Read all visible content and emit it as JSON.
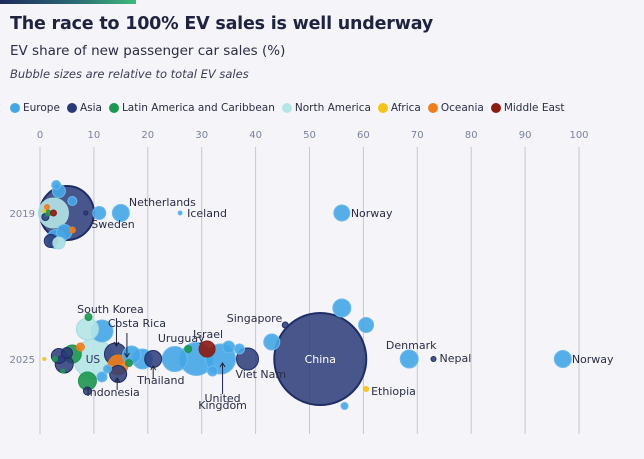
{
  "header": {
    "title": "The race to 100% EV sales is well underway",
    "subtitle": "EV share of new passenger car sales (%)",
    "note": "Bubble sizes are relative to total EV sales"
  },
  "colors": {
    "Europe": "#45a6e6",
    "Asia": "#2a3a78",
    "Latin America and Caribbean": "#1d9650",
    "North America": "#b5e6e6",
    "Africa": "#f7c21a",
    "Oceania": "#ef7d1a",
    "Middle East": "#8b1a10",
    "background": "#f4f4f9",
    "grid": "#c4c7d4"
  },
  "legend": [
    {
      "label": "Europe",
      "color": "#45a6e6"
    },
    {
      "label": "Asia",
      "color": "#2a3a78"
    },
    {
      "label": "Latin America and Caribbean",
      "color": "#1d9650"
    },
    {
      "label": "North America",
      "color": "#b5e6e6"
    },
    {
      "label": "Africa",
      "color": "#f7c21a"
    },
    {
      "label": "Oceania",
      "color": "#ef7d1a"
    },
    {
      "label": "Middle East",
      "color": "#8b1a10"
    }
  ],
  "chart_data": {
    "type": "scatter",
    "title": "The race to 100% EV sales is well underway",
    "subtitle": "EV share of new passenger car sales (%)",
    "note": "Bubble sizes are relative to total EV sales",
    "xlabel": "EV share of new passenger car sales (%)",
    "ylabel": "",
    "xlim": [
      0,
      100
    ],
    "xticks": [
      0,
      10,
      20,
      30,
      40,
      50,
      60,
      70,
      80,
      90,
      100
    ],
    "rows": [
      "2019",
      "2025"
    ],
    "grid": true,
    "legend_position": "top-left",
    "points": [
      {
        "year": "2019",
        "country": "Norway",
        "x": 56,
        "region": "Europe",
        "size": 1.6,
        "label": "Norway"
      },
      {
        "year": "2019",
        "country": "Iceland",
        "x": 26,
        "region": "Europe",
        "size": 0.4,
        "label": "Iceland"
      },
      {
        "year": "2019",
        "country": "Netherlands",
        "x": 15,
        "region": "Europe",
        "size": 1.7,
        "label": "Netherlands"
      },
      {
        "year": "2019",
        "country": "Sweden",
        "x": 11,
        "region": "Europe",
        "size": 1.3,
        "label": "Sweden"
      },
      {
        "year": "2019",
        "country": "China",
        "x": 5,
        "region": "Asia",
        "size": 5.4,
        "label": ""
      },
      {
        "year": "2019",
        "country": "US",
        "x": 2.5,
        "region": "North America",
        "size": 3.0,
        "label": ""
      },
      {
        "year": "2019",
        "country": "",
        "x": 8.5,
        "region": "Asia",
        "size": 0.4,
        "label": ""
      },
      {
        "year": "2019",
        "country": "",
        "x": 3,
        "region": "Europe",
        "size": 1.9,
        "dy": 26,
        "label": ""
      },
      {
        "year": "2019",
        "country": "",
        "x": 4.5,
        "region": "Europe",
        "size": 1.5,
        "dy": 19,
        "label": ""
      },
      {
        "year": "2019",
        "country": "",
        "x": 3.5,
        "region": "Europe",
        "size": 1.3,
        "dy": -22,
        "label": ""
      },
      {
        "year": "2019",
        "country": "",
        "x": 3,
        "region": "Europe",
        "size": 0.9,
        "dy": -28,
        "label": ""
      },
      {
        "year": "2019",
        "country": "",
        "x": 6,
        "region": "Europe",
        "size": 0.9,
        "dy": -12,
        "label": ""
      },
      {
        "year": "2019",
        "country": "",
        "x": 2,
        "region": "Asia",
        "size": 1.3,
        "dy": 28,
        "label": ""
      },
      {
        "year": "2019",
        "country": "",
        "x": 3.5,
        "region": "North America",
        "size": 1.2,
        "dy": 30,
        "label": ""
      },
      {
        "year": "2019",
        "country": "",
        "x": 6,
        "region": "Oceania",
        "size": 0.6,
        "dy": 17,
        "label": ""
      },
      {
        "year": "2019",
        "country": "",
        "x": 1.5,
        "region": "Latin America and Caribbean",
        "size": 0.6,
        "dy": 0,
        "label": ""
      },
      {
        "year": "2019",
        "country": "",
        "x": 2.5,
        "region": "Middle East",
        "size": 0.6,
        "dy": 0,
        "label": ""
      },
      {
        "year": "2019",
        "country": "",
        "x": 0.8,
        "region": "Africa",
        "size": 0.3,
        "dy": -2,
        "label": ""
      },
      {
        "year": "2019",
        "country": "",
        "x": 1.3,
        "region": "Oceania",
        "size": 0.5,
        "dy": -6,
        "label": ""
      },
      {
        "year": "2019",
        "country": "",
        "x": 1.0,
        "region": "Asia",
        "size": 0.7,
        "dy": 4,
        "label": ""
      },
      {
        "year": "2025",
        "country": "China",
        "x": 52,
        "region": "Asia",
        "size": 9.2,
        "label": "China"
      },
      {
        "year": "2025",
        "country": "US",
        "x": 10,
        "region": "North America",
        "size": 4.0,
        "label": "US"
      },
      {
        "year": "2025",
        "country": "Norway",
        "x": 97,
        "region": "Europe",
        "size": 1.7,
        "label": "Norway"
      },
      {
        "year": "2025",
        "country": "Nepal",
        "x": 73,
        "region": "Asia",
        "size": 0.5,
        "label": "Nepal"
      },
      {
        "year": "2025",
        "country": "Denmark",
        "x": 68.5,
        "region": "Europe",
        "size": 1.8,
        "label": "Denmark"
      },
      {
        "year": "2025",
        "country": "Ethiopia",
        "x": 60.5,
        "region": "Africa",
        "size": 0.5,
        "dy": 30,
        "label": "Ethiopia"
      },
      {
        "year": "2025",
        "country": "Singapore",
        "x": 45.5,
        "region": "Asia",
        "size": 0.6,
        "dy": -34,
        "label": "Singapore"
      },
      {
        "year": "2025",
        "country": "Viet Nam",
        "x": 38.5,
        "region": "Asia",
        "size": 2.2,
        "label": "Viet Nam"
      },
      {
        "year": "2025",
        "country": "United Kingdom",
        "x": 33.5,
        "region": "Europe",
        "size": 3.0,
        "label": "United Kingdom"
      },
      {
        "year": "2025",
        "country": "Israel",
        "x": 31,
        "region": "Middle East",
        "size": 1.6,
        "dy": -10,
        "label": "Israel"
      },
      {
        "year": "2025",
        "country": "Uruguay",
        "x": 27.5,
        "region": "Latin America and Caribbean",
        "size": 0.7,
        "dy": -10,
        "label": "Uruguay"
      },
      {
        "year": "2025",
        "country": "Thailand",
        "x": 21,
        "region": "Asia",
        "size": 1.7,
        "label": "Thailand"
      },
      {
        "year": "2025",
        "country": "Costa Rica",
        "x": 16.5,
        "region": "Latin America and Caribbean",
        "size": 0.7,
        "dy": 4,
        "label": "Costa Rica"
      },
      {
        "year": "2025",
        "country": "South Korea",
        "x": 14,
        "region": "Asia",
        "size": 2.2,
        "dy": -5,
        "label": "South Korea"
      },
      {
        "year": "2025",
        "country": "Indonesia",
        "x": 14.5,
        "region": "Asia",
        "size": 1.7,
        "dy": 15,
        "label": "Indonesia"
      },
      {
        "year": "2025",
        "country": "",
        "x": 14.5,
        "region": "Oceania",
        "size": 2.0,
        "dy": 6,
        "label": ""
      },
      {
        "year": "2025",
        "country": "",
        "x": 29,
        "region": "Europe",
        "size": 3.3,
        "label": ""
      },
      {
        "year": "2025",
        "country": "",
        "x": 25,
        "region": "Europe",
        "size": 2.5,
        "label": ""
      },
      {
        "year": "2025",
        "country": "",
        "x": 19,
        "region": "Europe",
        "size": 2.0,
        "label": ""
      },
      {
        "year": "2025",
        "country": "",
        "x": 17,
        "region": "Europe",
        "size": 1.8,
        "dy": -4,
        "label": ""
      },
      {
        "year": "2025",
        "country": "",
        "x": 35,
        "region": "Europe",
        "size": 1.2,
        "dy": -12,
        "label": ""
      },
      {
        "year": "2025",
        "country": "",
        "x": 32,
        "region": "Europe",
        "size": 1.0,
        "dy": 12,
        "label": ""
      },
      {
        "year": "2025",
        "country": "",
        "x": 37,
        "region": "Europe",
        "size": 1.0,
        "dy": -10,
        "label": ""
      },
      {
        "year": "2025",
        "country": "",
        "x": 43,
        "region": "Europe",
        "size": 1.6,
        "dy": -17,
        "label": ""
      },
      {
        "year": "2025",
        "country": "",
        "x": 56,
        "region": "Europe",
        "size": 1.8,
        "dy": -51,
        "label": ""
      },
      {
        "year": "2025",
        "country": "",
        "x": 60.5,
        "region": "Europe",
        "size": 1.5,
        "dy": -34,
        "label": ""
      },
      {
        "year": "2025",
        "country": "",
        "x": 56.5,
        "region": "Europe",
        "size": 0.7,
        "dy": 47,
        "label": ""
      },
      {
        "year": "2025",
        "country": "",
        "x": 11.5,
        "region": "Europe",
        "size": 2.2,
        "dy": -28,
        "label": ""
      },
      {
        "year": "2025",
        "country": "",
        "x": 8.8,
        "region": "North America",
        "size": 2.2,
        "dy": -30,
        "label": ""
      },
      {
        "year": "2025",
        "country": "",
        "x": 9,
        "region": "Latin America and Caribbean",
        "size": 0.7,
        "dy": -42,
        "label": ""
      },
      {
        "year": "2025",
        "country": "",
        "x": 6,
        "region": "Latin America and Caribbean",
        "size": 1.8,
        "dy": -5,
        "label": ""
      },
      {
        "year": "2025",
        "country": "",
        "x": 7.5,
        "region": "Oceania",
        "size": 0.8,
        "dy": -12,
        "label": ""
      },
      {
        "year": "2025",
        "country": "",
        "x": 3.5,
        "region": "Asia",
        "size": 1.5,
        "dy": -3,
        "label": ""
      },
      {
        "year": "2025",
        "country": "",
        "x": 4.5,
        "region": "Asia",
        "size": 1.8,
        "dy": 5,
        "label": ""
      },
      {
        "year": "2025",
        "country": "",
        "x": 5,
        "region": "Asia",
        "size": 1.1,
        "dy": -6,
        "label": ""
      },
      {
        "year": "2025",
        "country": "",
        "x": 8.8,
        "region": "Latin America and Caribbean",
        "size": 1.8,
        "dy": 22,
        "label": ""
      },
      {
        "year": "2025",
        "country": "",
        "x": 8.8,
        "region": "Asia",
        "size": 0.8,
        "dy": 32,
        "label": ""
      },
      {
        "year": "2025",
        "country": "",
        "x": 11.5,
        "region": "Europe",
        "size": 1.0,
        "dy": 18,
        "label": ""
      },
      {
        "year": "2025",
        "country": "",
        "x": 12.5,
        "region": "Europe",
        "size": 0.8,
        "dy": 10,
        "label": ""
      },
      {
        "year": "2025",
        "country": "",
        "x": 2.8,
        "region": "Latin America and Caribbean",
        "size": 0.5,
        "dy": 0,
        "label": ""
      },
      {
        "year": "2025",
        "country": "",
        "x": 4.2,
        "region": "Latin America and Caribbean",
        "size": 0.4,
        "dy": 12,
        "label": ""
      },
      {
        "year": "2025",
        "country": "",
        "x": 0.8,
        "region": "Africa",
        "size": 0.3,
        "dy": 0,
        "label": ""
      }
    ]
  }
}
